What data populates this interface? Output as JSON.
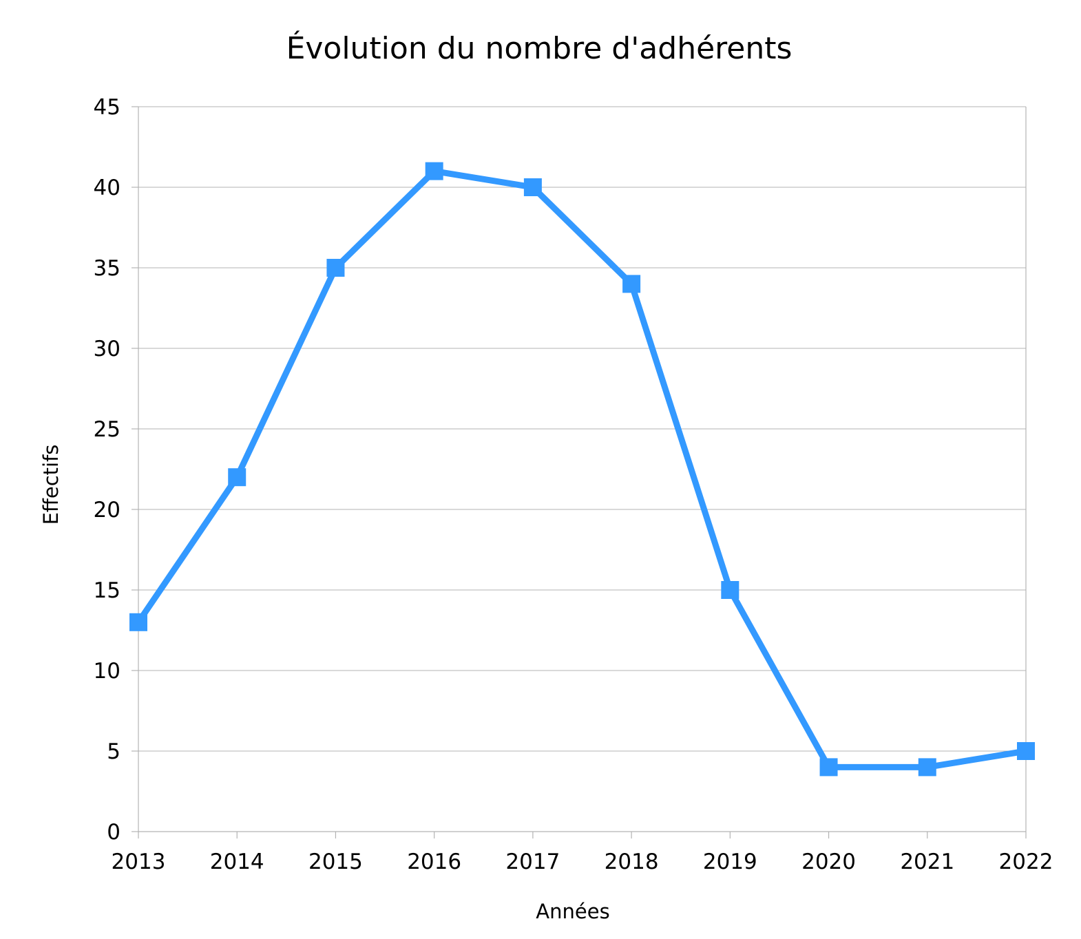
{
  "chart_data": {
    "type": "line",
    "title": "Évolution du nombre d'adhérents",
    "xlabel": "Années",
    "ylabel": "Effectifs",
    "categories": [
      "2013",
      "2014",
      "2015",
      "2016",
      "2017",
      "2018",
      "2019",
      "2020",
      "2021",
      "2022"
    ],
    "series": [
      {
        "values": [
          13,
          22,
          35,
          41,
          40,
          34,
          15,
          4,
          4,
          5
        ],
        "color": "#3399ff",
        "marker": "square"
      }
    ],
    "ylim": [
      0,
      45
    ],
    "yticks": [
      "0",
      "5",
      "10",
      "15",
      "20",
      "25",
      "30",
      "35",
      "40",
      "45"
    ],
    "grid": true,
    "legend": "none"
  }
}
